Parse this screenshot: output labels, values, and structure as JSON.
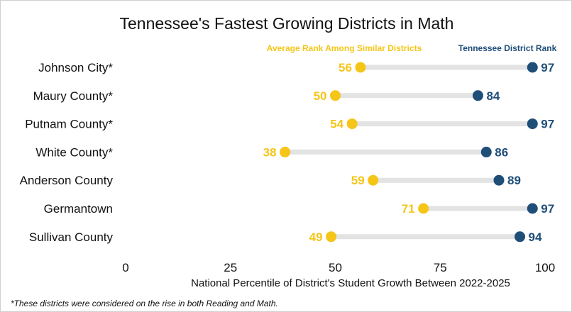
{
  "chart_data": {
    "type": "dumbbell",
    "title": "Tennessee's Fastest Growing Districts in Math",
    "xlabel": "National Percentile of District's Student Growth Between 2022-2025",
    "xlim": [
      0,
      100
    ],
    "xticks": [
      0,
      25,
      50,
      75,
      100
    ],
    "legend_placement": "top-right",
    "grid": false,
    "categories": [
      "Johnson City*",
      "Maury County*",
      "Putnam County*",
      "White County*",
      "Anderson County",
      "Germantown",
      "Sullivan County"
    ],
    "series": [
      {
        "name": "Average Rank Among Similar Districts",
        "color": "#f5c518",
        "values": [
          56,
          50,
          54,
          38,
          59,
          71,
          49
        ]
      },
      {
        "name": "Tennessee District Rank",
        "color": "#1f4e79",
        "values": [
          97,
          84,
          97,
          86,
          89,
          97,
          94
        ]
      }
    ],
    "connector_color": "#e3e3e3",
    "footnote": "*These districts were considered on the rise in both Reading and Math."
  }
}
